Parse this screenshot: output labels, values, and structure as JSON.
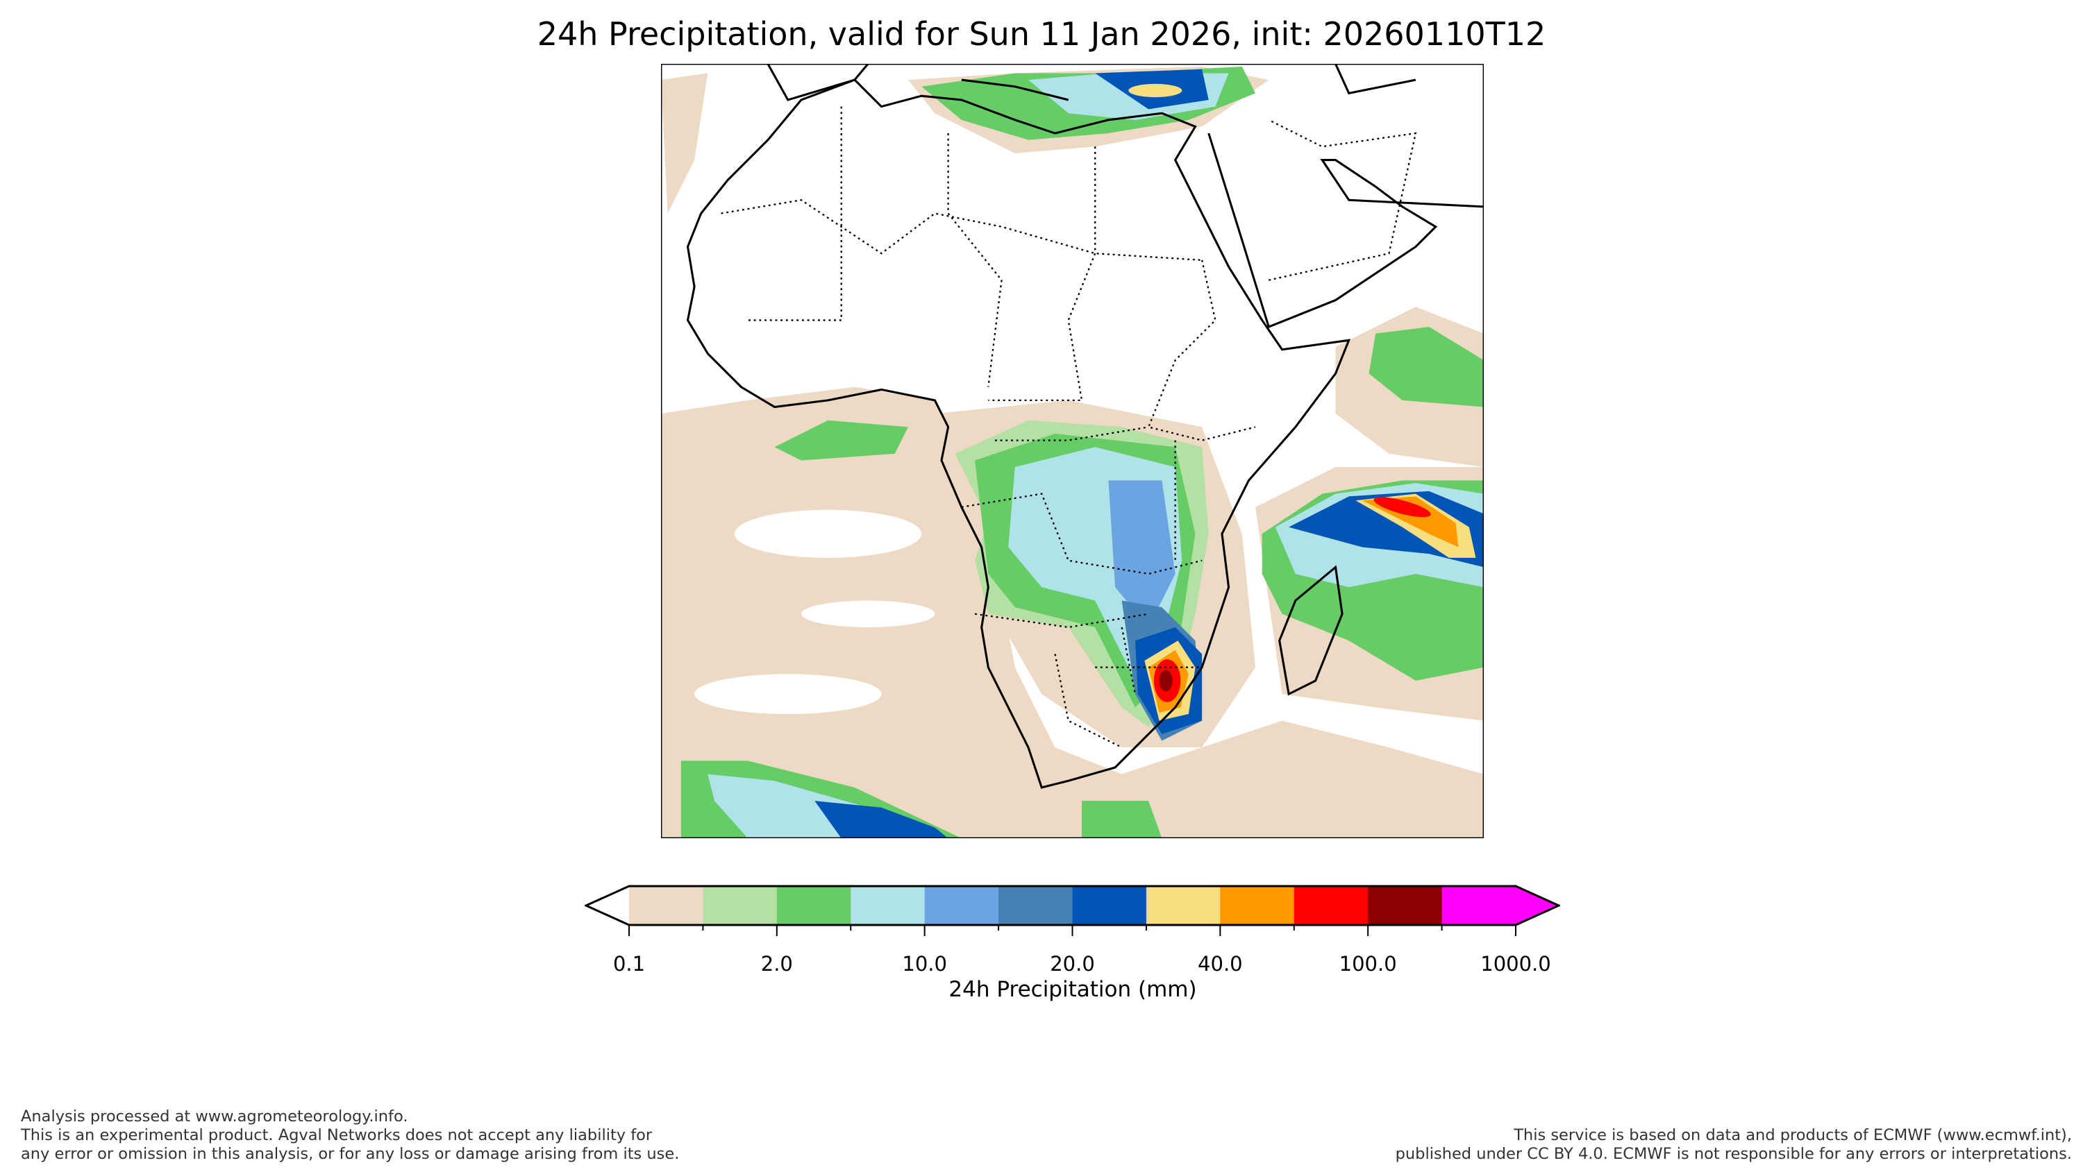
{
  "title": "24h Precipitation, valid for Sun 11 Jan 2026, init: 20260110T12",
  "colorbar": {
    "label": "24h Precipitation (mm)",
    "ticks": [
      "0.1",
      "2.0",
      "10.0",
      "20.0",
      "40.0",
      "100.0",
      "1000.0"
    ],
    "colors": [
      "#eed9c4",
      "#b4e0a4",
      "#66cc66",
      "#b0e2e9",
      "#6aa5e1",
      "#4682b4",
      "#0055b5",
      "#f7de7e",
      "#ff9900",
      "#ff0000",
      "#8b0000",
      "#ff00ff"
    ],
    "under_color": "#ffffff",
    "over_color": "#ff00ff"
  },
  "footer": {
    "left": [
      "Analysis processed at www.agrometeorology.info.",
      "This is an experimental product. Agval Networks does not accept any liability for",
      "any error or omission in this analysis, or for any loss or damage arising from its use."
    ],
    "right": [
      "This service is based on data and products of ECMWF (www.ecmwf.int),",
      "published under CC BY 4.0. ECMWF is not responsible for any errors or interpretations."
    ]
  }
}
